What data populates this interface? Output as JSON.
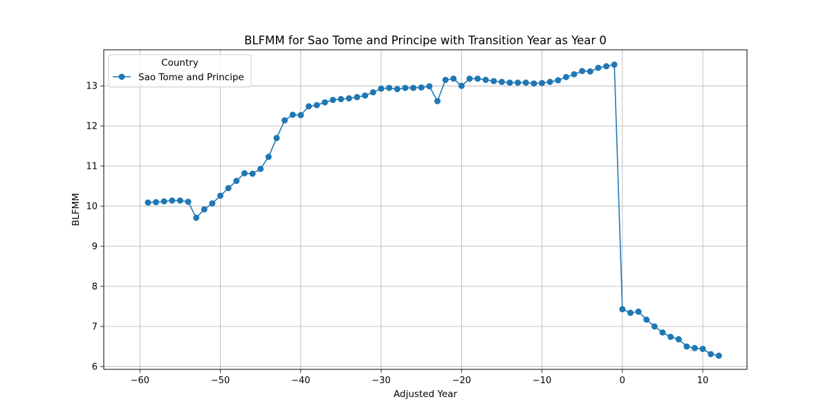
{
  "chart_data": {
    "type": "line",
    "title": "BLFMM for Sao Tome and Principe with Transition Year as Year 0",
    "xlabel": "Adjusted Year",
    "ylabel": "BLFMM",
    "xlim": [
      -64.5,
      15.5
    ],
    "ylim": [
      5.93,
      13.9
    ],
    "x_ticks": [
      -60,
      -50,
      -40,
      -30,
      -20,
      -10,
      0,
      10
    ],
    "x_tick_labels": [
      "−60",
      "−50",
      "−40",
      "−30",
      "−20",
      "−10",
      "0",
      "10"
    ],
    "y_ticks": [
      6,
      7,
      8,
      9,
      10,
      11,
      12,
      13
    ],
    "y_tick_labels": [
      "6",
      "7",
      "8",
      "9",
      "10",
      "11",
      "12",
      "13"
    ],
    "grid": true,
    "legend": {
      "title": "Country",
      "placement": "top-left"
    },
    "series": [
      {
        "name": "Sao Tome and Principe",
        "color": "#1f77b4",
        "marker": "circle",
        "x": [
          -59,
          -58,
          -57,
          -56,
          -55,
          -54,
          -53,
          -52,
          -51,
          -50,
          -49,
          -48,
          -47,
          -46,
          -45,
          -44,
          -43,
          -42,
          -41,
          -40,
          -39,
          -38,
          -37,
          -36,
          -35,
          -34,
          -33,
          -32,
          -31,
          -30,
          -29,
          -28,
          -27,
          -26,
          -25,
          -24,
          -23,
          -22,
          -21,
          -20,
          -19,
          -18,
          -17,
          -16,
          -15,
          -14,
          -13,
          -12,
          -11,
          -10,
          -9,
          -8,
          -7,
          -6,
          -5,
          -4,
          -3,
          -2,
          -1,
          0,
          1,
          2,
          3,
          4,
          5,
          6,
          7,
          8,
          9,
          10,
          11,
          12
        ],
        "y": [
          10.09,
          10.1,
          10.12,
          10.14,
          10.14,
          10.11,
          9.71,
          9.92,
          10.07,
          10.26,
          10.45,
          10.63,
          10.82,
          10.81,
          10.93,
          11.23,
          11.7,
          12.14,
          12.28,
          12.27,
          12.49,
          12.52,
          12.59,
          12.65,
          12.67,
          12.69,
          12.72,
          12.76,
          12.84,
          12.93,
          12.95,
          12.92,
          12.95,
          12.95,
          12.96,
          12.99,
          12.62,
          13.15,
          13.18,
          13.0,
          13.18,
          13.18,
          13.15,
          13.12,
          13.1,
          13.08,
          13.08,
          13.08,
          13.06,
          13.07,
          13.1,
          13.14,
          13.22,
          13.29,
          13.37,
          13.36,
          13.45,
          13.49,
          13.53,
          7.43,
          7.34,
          7.37,
          7.17,
          7.0,
          6.85,
          6.74,
          6.68,
          6.5,
          6.46,
          6.44,
          6.31,
          6.27
        ]
      }
    ]
  }
}
